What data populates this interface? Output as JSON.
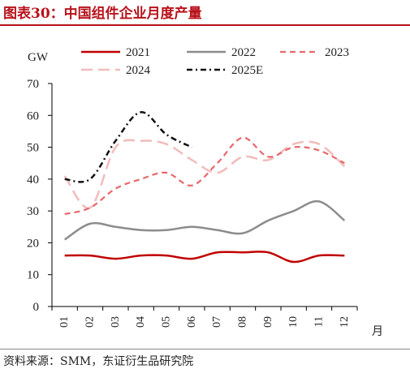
{
  "figure": {
    "title": "图表30：中国组件企业月度产量",
    "source": "资料来源：SMM，东证衍生品研究院"
  },
  "chart_data": {
    "type": "line",
    "ylabel": "GW",
    "xlabel": "月",
    "ylim": [
      0,
      70
    ],
    "yticks": [
      0,
      10,
      20,
      30,
      40,
      50,
      60,
      70
    ],
    "categories": [
      "01",
      "02",
      "03",
      "04",
      "05",
      "06",
      "07",
      "08",
      "09",
      "10",
      "11",
      "12"
    ],
    "grid": false,
    "legend_position": "top",
    "series": [
      {
        "name": "2021",
        "color": "#c00000",
        "dash": "solid",
        "values": [
          16,
          16,
          15,
          16,
          16,
          15,
          17,
          17,
          17,
          14,
          16,
          16
        ]
      },
      {
        "name": "2022",
        "color": "#8c8c8c",
        "dash": "solid",
        "values": [
          21,
          26,
          25,
          24,
          24,
          25,
          24,
          23,
          27,
          30,
          33,
          27
        ]
      },
      {
        "name": "2023",
        "color": "#e8676b",
        "dash": "dashed",
        "values": [
          29,
          31,
          37,
          40,
          42,
          38,
          45,
          53,
          47,
          50,
          49,
          45
        ]
      },
      {
        "name": "2024",
        "color": "#f2bcbc",
        "dash": "longdash",
        "values": [
          41,
          31,
          50,
          52,
          51,
          46,
          42,
          47,
          46,
          51,
          51,
          44
        ]
      },
      {
        "name": "2025E",
        "color": "#111111",
        "dash": "dashdot",
        "values": [
          40,
          40,
          52,
          61,
          54,
          50,
          null,
          null,
          null,
          null,
          null,
          null
        ]
      }
    ]
  }
}
